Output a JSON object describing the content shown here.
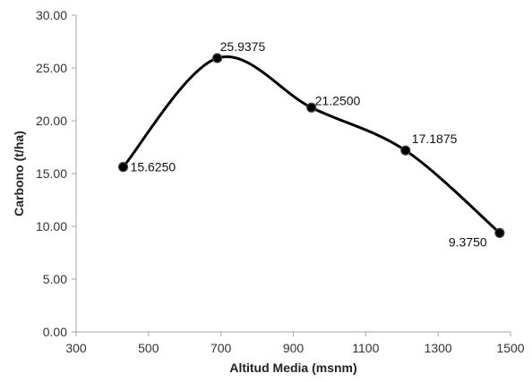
{
  "chart_data": {
    "type": "line",
    "title": "",
    "xlabel": "Altitud Media (msnm)",
    "ylabel": "Carbono (t/ha)",
    "xlim": [
      300,
      1500
    ],
    "ylim": [
      0,
      30
    ],
    "x_ticks": [
      300,
      500,
      700,
      900,
      1100,
      1300,
      1500
    ],
    "y_ticks": [
      0,
      5,
      10,
      15,
      20,
      25,
      30
    ],
    "x_tick_labels": [
      "300",
      "500",
      "700",
      "900",
      "1100",
      "1300",
      "1500"
    ],
    "y_tick_labels": [
      "0.00",
      "5.00",
      "10.00",
      "15.00",
      "20.00",
      "25.00",
      "30.00"
    ],
    "grid": false,
    "legend": "none",
    "smooth": true,
    "line_color": "#000000",
    "marker_color": "#000000",
    "axis_color": "#a6a6a6",
    "series": [
      {
        "x": [
          430,
          690,
          950,
          1210,
          1470
        ],
        "values": [
          15.625,
          25.9375,
          21.25,
          17.1875,
          9.375
        ],
        "labels": [
          "15.6250",
          "25.9375",
          "21.2500",
          "17.1875",
          "9.3750"
        ]
      }
    ]
  }
}
